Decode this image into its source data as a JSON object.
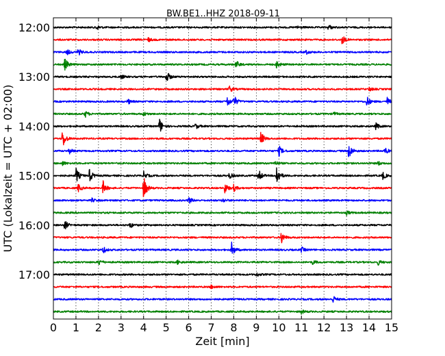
{
  "chart_data": {
    "type": "line",
    "title": "BW.BE1..HHZ 2018-09-11",
    "xlabel": "Zeit  [min]",
    "ylabel": "UTC (Lokalzeit = UTC + 02:00)",
    "xlim": [
      0,
      15
    ],
    "x_ticks": [
      "0",
      "1",
      "2",
      "3",
      "4",
      "5",
      "6",
      "7",
      "8",
      "9",
      "10",
      "11",
      "12",
      "13",
      "14",
      "15"
    ],
    "y_tick_labels": [
      "12:00",
      "13:00",
      "14:00",
      "15:00",
      "16:00",
      "17:00"
    ],
    "grid": "vertical-dotted",
    "series_colors": [
      "#000000",
      "#ff0000",
      "#0000ff",
      "#008000"
    ],
    "traces": [
      {
        "start": "12:00",
        "color": "#000000",
        "events": [
          {
            "t": 1.9,
            "a": 4
          },
          {
            "t": 10.8,
            "a": 3
          },
          {
            "t": 12.2,
            "a": 4
          }
        ]
      },
      {
        "start": "12:15",
        "color": "#ff0000",
        "events": [
          {
            "t": 4.2,
            "a": 3
          },
          {
            "t": 12.8,
            "a": 7
          }
        ]
      },
      {
        "start": "12:30",
        "color": "#0000ff",
        "events": [
          {
            "t": 0.6,
            "a": 4
          },
          {
            "t": 1.1,
            "a": 5
          },
          {
            "t": 11.2,
            "a": 3
          }
        ]
      },
      {
        "start": "12:45",
        "color": "#008000",
        "events": [
          {
            "t": 0.5,
            "a": 9
          },
          {
            "t": 8.1,
            "a": 6
          },
          {
            "t": 9.9,
            "a": 6
          }
        ]
      },
      {
        "start": "13:00",
        "color": "#000000",
        "events": [
          {
            "t": 3.0,
            "a": 3
          },
          {
            "t": 5.0,
            "a": 10
          }
        ]
      },
      {
        "start": "13:15",
        "color": "#ff0000",
        "events": [
          {
            "t": 7.8,
            "a": 5
          },
          {
            "t": 14.0,
            "a": 3
          }
        ]
      },
      {
        "start": "13:30",
        "color": "#0000ff",
        "events": [
          {
            "t": 3.3,
            "a": 4
          },
          {
            "t": 7.7,
            "a": 8
          },
          {
            "t": 8.0,
            "a": 9
          },
          {
            "t": 13.9,
            "a": 8
          },
          {
            "t": 14.8,
            "a": 6
          }
        ]
      },
      {
        "start": "13:45",
        "color": "#008000",
        "events": [
          {
            "t": 1.4,
            "a": 5
          },
          {
            "t": 4.0,
            "a": 3
          },
          {
            "t": 12.4,
            "a": 3
          }
        ]
      },
      {
        "start": "14:00",
        "color": "#000000",
        "events": [
          {
            "t": 4.7,
            "a": 12
          },
          {
            "t": 6.3,
            "a": 4
          },
          {
            "t": 14.3,
            "a": 5
          }
        ]
      },
      {
        "start": "14:15",
        "color": "#ff0000",
        "events": [
          {
            "t": 0.4,
            "a": 15
          },
          {
            "t": 9.2,
            "a": 10
          }
        ]
      },
      {
        "start": "14:30",
        "color": "#0000ff",
        "events": [
          {
            "t": 0.7,
            "a": 4
          },
          {
            "t": 10.0,
            "a": 8
          },
          {
            "t": 13.1,
            "a": 12
          },
          {
            "t": 14.7,
            "a": 5
          }
        ]
      },
      {
        "start": "14:45",
        "color": "#008000",
        "events": [
          {
            "t": 0.4,
            "a": 3
          },
          {
            "t": 9.8,
            "a": 4
          },
          {
            "t": 14.4,
            "a": 3
          }
        ]
      },
      {
        "start": "15:00",
        "color": "#000000",
        "events": [
          {
            "t": 1.0,
            "a": 12
          },
          {
            "t": 1.6,
            "a": 10
          },
          {
            "t": 4.0,
            "a": 6
          },
          {
            "t": 7.8,
            "a": 5
          },
          {
            "t": 9.1,
            "a": 9
          },
          {
            "t": 9.9,
            "a": 16
          },
          {
            "t": 14.6,
            "a": 6
          }
        ]
      },
      {
        "start": "15:15",
        "color": "#ff0000",
        "events": [
          {
            "t": 1.1,
            "a": 6
          },
          {
            "t": 2.2,
            "a": 10
          },
          {
            "t": 4.0,
            "a": 18
          },
          {
            "t": 7.6,
            "a": 8
          },
          {
            "t": 8.0,
            "a": 5
          }
        ]
      },
      {
        "start": "15:30",
        "color": "#0000ff",
        "events": [
          {
            "t": 1.7,
            "a": 3
          },
          {
            "t": 6.0,
            "a": 5
          },
          {
            "t": 7.5,
            "a": 3
          }
        ]
      },
      {
        "start": "15:45",
        "color": "#008000",
        "events": [
          {
            "t": 13.0,
            "a": 3
          }
        ]
      },
      {
        "start": "16:00",
        "color": "#000000",
        "events": [
          {
            "t": 0.5,
            "a": 7
          },
          {
            "t": 3.4,
            "a": 4
          }
        ]
      },
      {
        "start": "16:15",
        "color": "#ff0000",
        "events": [
          {
            "t": 10.1,
            "a": 10
          }
        ]
      },
      {
        "start": "16:30",
        "color": "#0000ff",
        "events": [
          {
            "t": 2.2,
            "a": 5
          },
          {
            "t": 7.9,
            "a": 11
          },
          {
            "t": 11.0,
            "a": 4
          }
        ]
      },
      {
        "start": "16:45",
        "color": "#008000",
        "events": [
          {
            "t": 2.0,
            "a": 5
          },
          {
            "t": 5.5,
            "a": 3
          },
          {
            "t": 11.5,
            "a": 3
          },
          {
            "t": 14.4,
            "a": 4
          }
        ]
      },
      {
        "start": "17:00",
        "color": "#000000",
        "events": [
          {
            "t": 9.0,
            "a": 3
          }
        ]
      },
      {
        "start": "17:15",
        "color": "#ff0000",
        "events": [
          {
            "t": 7.0,
            "a": 3
          }
        ]
      },
      {
        "start": "17:30",
        "color": "#0000ff",
        "events": [
          {
            "t": 12.4,
            "a": 5
          }
        ]
      },
      {
        "start": "17:45",
        "color": "#008000",
        "events": [
          {
            "t": 11.0,
            "a": 3
          }
        ]
      }
    ]
  }
}
